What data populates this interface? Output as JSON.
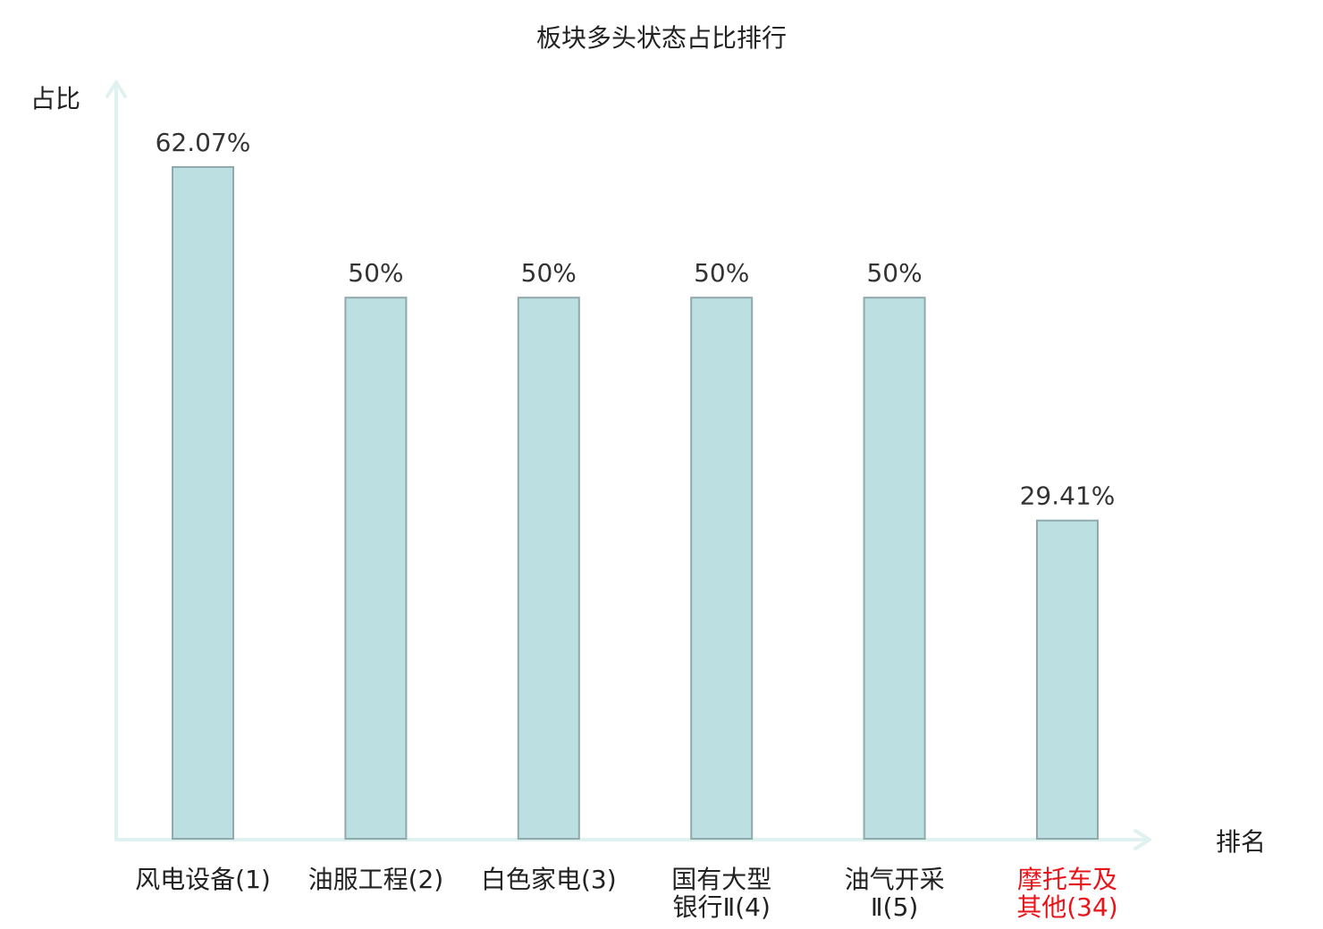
{
  "chart_data": {
    "type": "bar",
    "title": "板块多头状态占比排行",
    "ylabel": "占比",
    "xlabel": "排名",
    "ylim": [
      0,
      78
    ],
    "grid": false,
    "categories": [
      [
        "风电设备(1)"
      ],
      [
        "油服工程(2)"
      ],
      [
        "白色家电(3)"
      ],
      [
        "国有大型",
        "银行Ⅱ(4)"
      ],
      [
        "油气开采",
        "Ⅱ(5)"
      ],
      [
        "摩托车及",
        "其他(34)"
      ]
    ],
    "values": [
      62.07,
      50,
      50,
      50,
      50,
      29.41
    ],
    "value_labels": [
      "62.07%",
      "50%",
      "50%",
      "50%",
      "50%",
      "29.41%"
    ],
    "highlight_index": 5
  },
  "colors": {
    "bar_fill": "#bce0e2",
    "bar_stroke": "#8fa9ad",
    "axis": "#dff2ef",
    "text": "#222222",
    "value_text": "#333333",
    "highlight_text": "#e8141a"
  }
}
